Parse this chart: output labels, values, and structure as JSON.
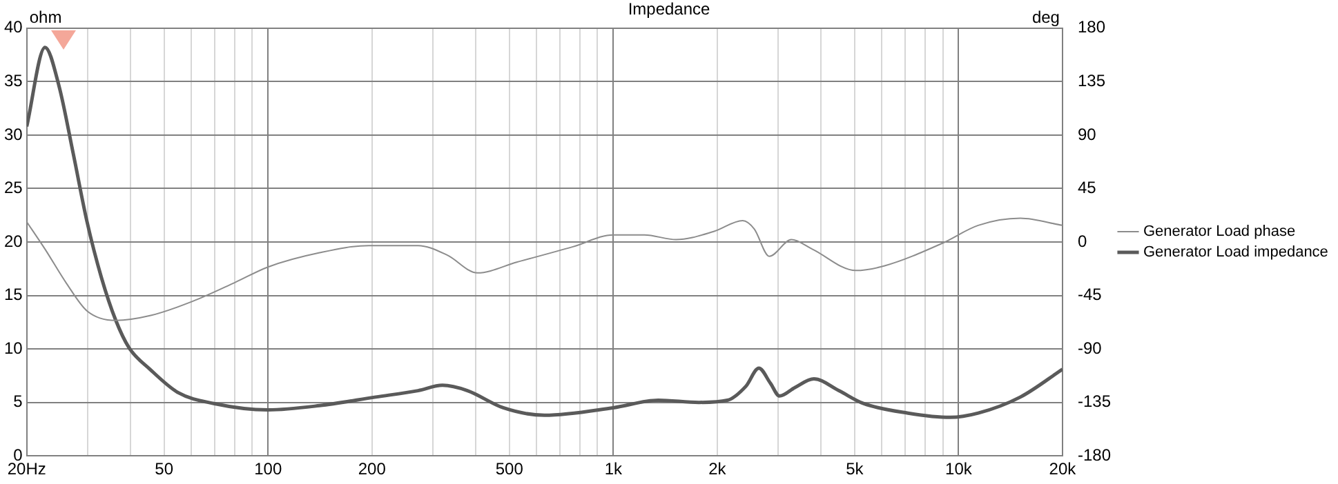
{
  "chart_data": {
    "type": "line",
    "title": "Impedance",
    "ylabel": "ohm",
    "y2label": "deg",
    "xlim": [
      20,
      20000
    ],
    "xticks": [
      {
        "value": 20,
        "label": "20Hz"
      },
      {
        "value": 30,
        "label": null
      },
      {
        "value": 40,
        "label": null
      },
      50,
      {
        "value": 60,
        "label": null
      },
      {
        "value": 70,
        "label": null
      },
      {
        "value": 80,
        "label": null
      },
      {
        "value": 90,
        "label": null
      },
      100,
      200,
      {
        "value": 300,
        "label": null
      },
      {
        "value": 400,
        "label": null
      },
      500,
      {
        "value": 600,
        "label": null
      },
      {
        "value": 700,
        "label": null
      },
      {
        "value": 800,
        "label": null
      },
      {
        "value": 900,
        "label": null
      },
      {
        "value": 1000,
        "label": "1k"
      },
      {
        "value": 2000,
        "label": "2k"
      },
      {
        "value": 3000,
        "label": null
      },
      {
        "value": 4000,
        "label": null
      },
      {
        "value": 5000,
        "label": "5k"
      },
      {
        "value": 6000,
        "label": null
      },
      {
        "value": 7000,
        "label": null
      },
      {
        "value": 8000,
        "label": null
      },
      {
        "value": 9000,
        "label": null
      },
      {
        "value": 10000,
        "label": "10k"
      },
      {
        "value": 20000,
        "label": "20k"
      }
    ],
    "log": "x",
    "ylim": [
      0,
      40
    ],
    "yticks": [
      0,
      5,
      10,
      15,
      20,
      25,
      30,
      35,
      40
    ],
    "y2lim": [
      -180,
      180
    ],
    "y2ticks": [
      -180,
      -135,
      -90,
      -45,
      0,
      45,
      90,
      135,
      180
    ],
    "grid": true,
    "legend": "right",
    "line_style": "solid",
    "marker": "none",
    "series": [
      {
        "name": "Generator Load phase",
        "color": "#8c8c8c",
        "axis": "y2",
        "x": [
          20,
          22.6,
          26.1,
          29.9,
          36.2,
          45.5,
          60.4,
          80.3,
          100,
          141,
          196,
          272,
          330,
          404,
          525,
          764,
          1000,
          1230,
          1520,
          1960,
          2370,
          2560,
          2830,
          3280,
          3770,
          5040,
          6110,
          8980,
          11400,
          15100,
          20000
        ],
        "values": [
          17,
          -6,
          -35,
          -58,
          -66,
          -62,
          -50,
          -34,
          -21,
          -9,
          -3,
          -3,
          -11,
          -26,
          -17,
          -4,
          6,
          6,
          2,
          9,
          18,
          11,
          -12,
          2,
          -6,
          -24,
          -20,
          -1,
          14,
          20,
          14
        ]
      },
      {
        "name": "Generator Load impedance",
        "color": "#5a5a5a",
        "axis": "y",
        "x": [
          20,
          22.6,
          24.8,
          27.3,
          29.9,
          32.9,
          36.2,
          39.6,
          45.5,
          55,
          69.6,
          100,
          141,
          205,
          272,
          320,
          378,
          480,
          632,
          1000,
          1350,
          1770,
          2140,
          2420,
          2640,
          2850,
          3030,
          3360,
          3810,
          4500,
          5300,
          7140,
          9450,
          11400,
          15100,
          20000
        ],
        "values": [
          30.8,
          38.2,
          34.6,
          28.2,
          21.9,
          16.7,
          12.7,
          10.1,
          8.1,
          5.9,
          4.9,
          4.3,
          4.7,
          5.5,
          6.1,
          6.6,
          6.1,
          4.5,
          3.8,
          4.5,
          5.2,
          5.0,
          5.2,
          6.5,
          8.2,
          6.8,
          5.6,
          6.4,
          7.2,
          6.1,
          4.9,
          4.0,
          3.6,
          4.0,
          5.5,
          8.1
        ]
      }
    ]
  }
}
